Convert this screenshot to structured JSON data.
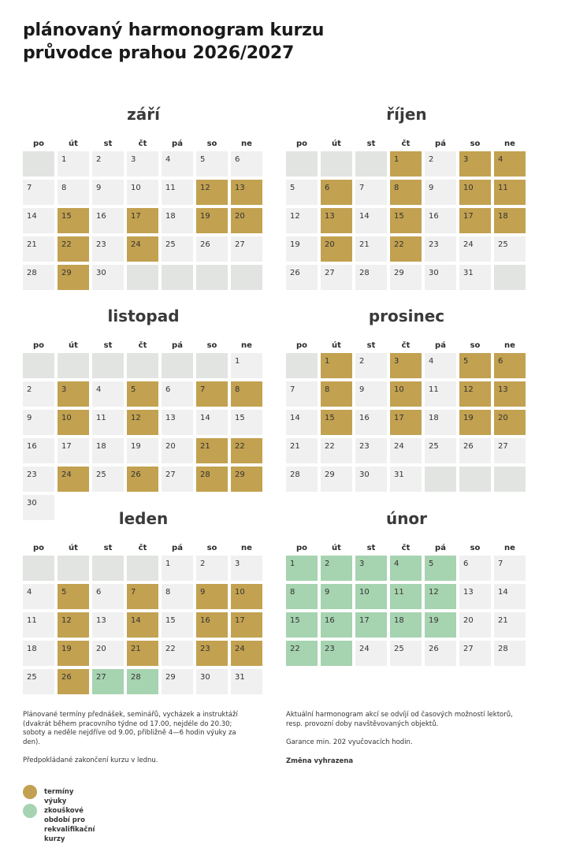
{
  "title": {
    "line1": "plánovaný harmonogram kurzu",
    "line2": "průvodce prahou 2026/2027"
  },
  "weekdays": [
    "po",
    "út",
    "st",
    "čt",
    "pá",
    "so",
    "ne"
  ],
  "colors": {
    "teaching": "#c2a150",
    "exam": "#a6d3b0",
    "plain": "#f0f0f0",
    "empty": "#e2e4e1"
  },
  "months": [
    {
      "name": "září",
      "offset": 1,
      "days": 30,
      "teaching": [
        12,
        13,
        15,
        17,
        19,
        20,
        22,
        24,
        29
      ],
      "exam": []
    },
    {
      "name": "říjen",
      "offset": 3,
      "days": 31,
      "teaching": [
        1,
        3,
        4,
        6,
        8,
        10,
        11,
        13,
        15,
        17,
        18,
        20,
        22
      ],
      "exam": []
    },
    {
      "name": "listopad",
      "offset": 6,
      "days": 30,
      "teaching": [
        3,
        5,
        7,
        8,
        10,
        12,
        21,
        22,
        24,
        26,
        28,
        29
      ],
      "exam": []
    },
    {
      "name": "prosinec",
      "offset": 1,
      "days": 31,
      "teaching": [
        1,
        3,
        5,
        6,
        8,
        10,
        12,
        13,
        15,
        17,
        19,
        20
      ],
      "exam": []
    },
    {
      "name": "leden",
      "offset": 4,
      "days": 31,
      "teaching": [
        5,
        7,
        9,
        10,
        12,
        14,
        16,
        17,
        19,
        21,
        23,
        24,
        26
      ],
      "exam": [
        27,
        28
      ]
    },
    {
      "name": "únor",
      "offset": 0,
      "days": 28,
      "teaching": [],
      "exam": [
        1,
        2,
        3,
        4,
        5,
        8,
        9,
        10,
        11,
        12,
        15,
        16,
        17,
        18,
        19,
        22,
        23
      ]
    }
  ],
  "notes_left": [
    "Plánované termíny přednášek, seminářů, vycházek a instruktáží (dvakrát během pracovního týdne od 17.00, nejdéle do 20.30; soboty a neděle nejdříve od 9.00, přibližně 4—6 hodin výuky za den).",
    "Předpokládané zakončení kurzu v lednu."
  ],
  "notes_right": {
    "p1": "Aktuální harmonogram akcí se odvíjí od časových možností lektorů, resp. provozní doby navštěvovaných objektů.",
    "p2": "Garance min. 202 vyučovacích hodin.",
    "p3": "Změna vyhrazena"
  },
  "legend": [
    {
      "label": "termíny výuky",
      "color": "#c2a150"
    },
    {
      "label": "zkouškové období pro rekvalifikační kurzy",
      "color": "#a6d3b0"
    }
  ]
}
